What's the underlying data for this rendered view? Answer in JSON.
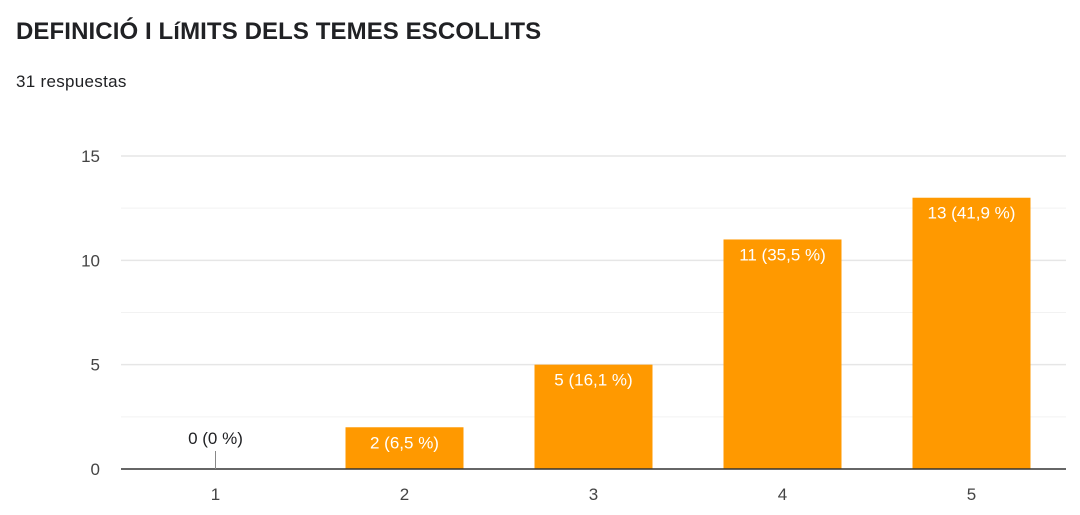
{
  "header": {
    "title": "DEFINICIÓ I LíMITS DELS TEMES ESCOLLITS",
    "responses": "31 respuestas"
  },
  "colors": {
    "bar": "#ff9900",
    "grid_major": "#e6e6e6",
    "grid_minor": "#f2f2f2",
    "axis": "#333333",
    "label_inside": "#ffffff",
    "label_outside": "#202124",
    "tick_text": "#444444"
  },
  "chart_data": {
    "type": "bar",
    "categories": [
      "1",
      "2",
      "3",
      "4",
      "5"
    ],
    "values": [
      0,
      2,
      5,
      11,
      13
    ],
    "data_labels": [
      "0 (0 %)",
      "2 (6,5 %)",
      "5 (16,1 %)",
      "11 (35,5 %)",
      "13 (41,9 %)"
    ],
    "ylim": [
      0,
      15
    ],
    "yticks": [
      "0",
      "5",
      "10",
      "15"
    ],
    "minor_gridlines": [
      2.5,
      7.5,
      12.5
    ],
    "grid": true,
    "legend": "none"
  }
}
